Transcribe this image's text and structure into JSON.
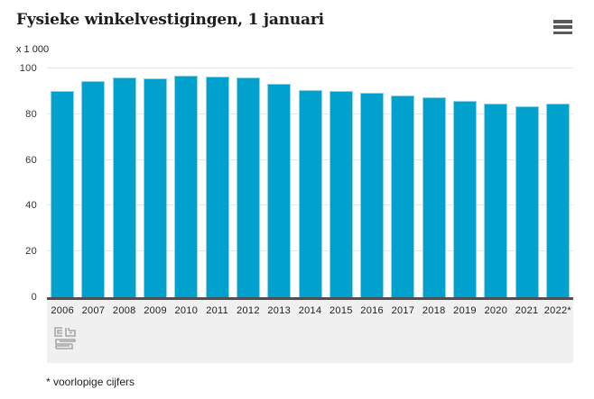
{
  "header": {
    "title": "Fysieke winkelvestigingen, 1 januari"
  },
  "chart_data": {
    "type": "bar",
    "title": "Fysieke winkelvestigingen, 1 januari",
    "unit_label": "x 1 000",
    "xlabel": "",
    "ylabel": "x 1 000",
    "categories": [
      "2006",
      "2007",
      "2008",
      "2009",
      "2010",
      "2011",
      "2012",
      "2013",
      "2014",
      "2015",
      "2016",
      "2017",
      "2018",
      "2019",
      "2020",
      "2021",
      "2022*"
    ],
    "values": [
      90,
      94.5,
      96,
      95.5,
      97,
      96.5,
      96,
      93.5,
      90.5,
      90,
      89.5,
      88,
      87.5,
      86,
      84.5,
      83.5,
      84.5
    ],
    "ylim": [
      0,
      100
    ],
    "yticks": [
      0,
      20,
      40,
      60,
      80,
      100
    ],
    "grid": true,
    "legend": false,
    "bar_color": "#00a1cd",
    "grid_color": "#e7e7e9",
    "axis_line_color": "#4f4f51",
    "band_color": "#f0f0f0"
  },
  "footer": {
    "footnote": "* voorlopige cijfers",
    "logo_name": "cbs-logo"
  }
}
